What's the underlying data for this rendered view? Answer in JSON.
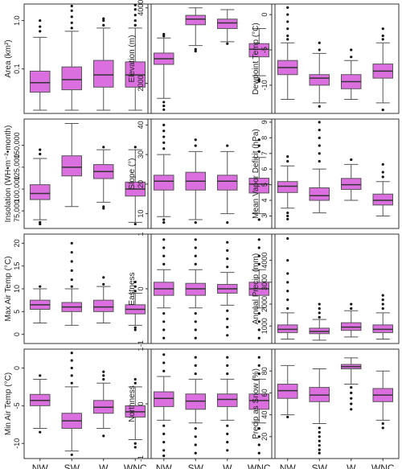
{
  "palette": {
    "box_fill": "#dc6fdf",
    "box_stroke": "#555555",
    "outlier": "#111111",
    "frame": "#333333"
  },
  "categories": [
    "NW",
    "SW",
    "W",
    "WNC"
  ],
  "chart_data": [
    {
      "type": "box",
      "ylabel": "Area (km²)",
      "yscale": "log",
      "ylim": [
        0.012,
        2.2
      ],
      "yticks": [
        {
          "v": 0.1,
          "label": "0.1"
        },
        {
          "v": 1.0,
          "label": "1.0"
        }
      ],
      "boxes": [
        {
          "min": 0.014,
          "q1": 0.033,
          "median": 0.052,
          "q3": 0.09,
          "max": 0.45,
          "outliers": [
            0.6,
            0.75,
            1.0
          ]
        },
        {
          "min": 0.014,
          "q1": 0.037,
          "median": 0.06,
          "q3": 0.11,
          "max": 0.6,
          "outliers": [
            0.7,
            0.9,
            1.2,
            1.6,
            2.0
          ]
        },
        {
          "min": 0.014,
          "q1": 0.042,
          "median": 0.075,
          "q3": 0.15,
          "max": 0.7,
          "outliers": [
            0.8,
            1.0,
            1.1
          ]
        },
        {
          "min": 0.014,
          "q1": 0.042,
          "median": 0.075,
          "q3": 0.14,
          "max": 0.7,
          "outliers": [
            0.8,
            1.0,
            1.3,
            1.7,
            2.1
          ]
        }
      ]
    },
    {
      "type": "box",
      "ylabel": "Elevation (m)",
      "yscale": "linear",
      "ylim": [
        1200,
        4100
      ],
      "yticks": [
        {
          "v": 2000,
          "label": "2000"
        },
        {
          "v": 4000,
          "label": "4000"
        }
      ],
      "boxes": [
        {
          "min": 1600,
          "q1": 2500,
          "median": 2650,
          "q3": 2800,
          "max": 3200,
          "outliers": [
            1500,
            1400,
            1300,
            3250,
            3300
          ]
        },
        {
          "min": 3000,
          "q1": 3550,
          "median": 3700,
          "q3": 3800,
          "max": 4000,
          "outliers": [
            2900,
            2850
          ]
        },
        {
          "min": 3100,
          "q1": 3450,
          "median": 3600,
          "q3": 3700,
          "max": 3950,
          "outliers": [
            3050
          ]
        },
        {
          "min": 2200,
          "q1": 2700,
          "median": 2900,
          "q3": 3050,
          "max": 3450,
          "outliers": [
            2100,
            2050
          ]
        }
      ]
    },
    {
      "type": "box",
      "ylabel": "Dewpoint Temp (°C)",
      "yscale": "linear",
      "ylim": [
        -14,
        1.5
      ],
      "yticks": [
        {
          "v": -10,
          "label": "-10"
        },
        {
          "v": -5,
          "label": "-5"
        },
        {
          "v": 0,
          "label": "0"
        }
      ],
      "boxes": [
        {
          "min": -12,
          "q1": -8.5,
          "median": -7.5,
          "q3": -6.5,
          "max": -4,
          "outliers": [
            -3.5,
            -3,
            -2,
            -1,
            0,
            1
          ]
        },
        {
          "min": -12.5,
          "q1": -10,
          "median": -9,
          "q3": -8.5,
          "max": -5.5,
          "outliers": [
            -13,
            -5,
            -4
          ]
        },
        {
          "min": -12,
          "q1": -10.5,
          "median": -9.5,
          "q3": -8.5,
          "max": -6.5,
          "outliers": [
            -6,
            -5
          ]
        },
        {
          "min": -12.5,
          "q1": -9,
          "median": -8,
          "q3": -7,
          "max": -4,
          "outliers": [
            -13.5,
            -3.5,
            -3,
            -2
          ]
        }
      ]
    },
    {
      "type": "box",
      "ylabel": "Insolation (WH•m⁻²•month)",
      "yscale": "linear",
      "ylim": [
        55000,
        180000
      ],
      "yticks": [
        {
          "v": 75000,
          "label": "75,000"
        },
        {
          "v": 100000,
          "label": "100,000"
        },
        {
          "v": 125000,
          "label": "125,000"
        },
        {
          "v": 150000,
          "label": "150,000"
        }
      ],
      "boxes": [
        {
          "min": 65000,
          "q1": 88000,
          "median": 95000,
          "q3": 105000,
          "max": 135000,
          "outliers": [
            62000,
            60000,
            140000,
            145000
          ]
        },
        {
          "min": 80000,
          "q1": 115000,
          "median": 125000,
          "q3": 138000,
          "max": 175000,
          "outliers": []
        },
        {
          "min": 85000,
          "q1": 112000,
          "median": 120000,
          "q3": 128000,
          "max": 145000,
          "outliers": [
            80000,
            78000,
            148000
          ]
        },
        {
          "min": 62000,
          "q1": 92000,
          "median": 100000,
          "q3": 108000,
          "max": 145000,
          "outliers": [
            60000,
            148000
          ]
        }
      ]
    },
    {
      "type": "box",
      "ylabel": "Slope (°)",
      "yscale": "linear",
      "ylim": [
        5,
        42
      ],
      "yticks": [
        {
          "v": 10,
          "label": "10"
        },
        {
          "v": 20,
          "label": "20"
        },
        {
          "v": 30,
          "label": "30"
        },
        {
          "v": 40,
          "label": "40"
        }
      ],
      "boxes": [
        {
          "min": 9,
          "q1": 18,
          "median": 21,
          "q3": 23,
          "max": 30,
          "outliers": [
            8,
            7,
            32,
            34,
            36,
            38,
            40
          ]
        },
        {
          "min": 8,
          "q1": 18,
          "median": 21,
          "q3": 24,
          "max": 31,
          "outliers": [
            7,
            33,
            35
          ]
        },
        {
          "min": 10,
          "q1": 18,
          "median": 21,
          "q3": 23,
          "max": 31,
          "outliers": [
            7,
            33
          ]
        },
        {
          "min": 10,
          "q1": 17,
          "median": 20,
          "q3": 22,
          "max": 29,
          "outliers": [
            8,
            31,
            33,
            35
          ]
        }
      ]
    },
    {
      "type": "box",
      "ylabel": "Mean Vapor Deficit (hPa)",
      "yscale": "linear",
      "ylim": [
        2.2,
        9.2
      ],
      "yticks": [
        {
          "v": 3,
          "label": "3"
        },
        {
          "v": 4,
          "label": "4"
        },
        {
          "v": 5,
          "label": "5"
        },
        {
          "v": 6,
          "label": "6"
        },
        {
          "v": 7,
          "label": "7"
        },
        {
          "v": 8,
          "label": "8"
        },
        {
          "v": 9,
          "label": "9"
        }
      ],
      "boxes": [
        {
          "min": 3.5,
          "q1": 4.5,
          "median": 4.9,
          "q3": 5.2,
          "max": 6.2,
          "outliers": [
            3.2,
            3.0,
            2.8,
            6.5,
            6.8
          ]
        },
        {
          "min": 3.2,
          "q1": 4.0,
          "median": 4.3,
          "q3": 4.8,
          "max": 6,
          "outliers": [
            6.5,
            7,
            7.5,
            8,
            8.5,
            9
          ]
        },
        {
          "min": 4.0,
          "q1": 4.7,
          "median": 5.0,
          "q3": 5.4,
          "max": 6.3,
          "outliers": [
            6.6
          ]
        },
        {
          "min": 3.0,
          "q1": 3.7,
          "median": 4.0,
          "q3": 4.4,
          "max": 5.2,
          "outliers": [
            5.5,
            5.8,
            6.3
          ]
        }
      ]
    },
    {
      "type": "box",
      "ylabel": "Max Air Temp (°C)",
      "yscale": "linear",
      "ylim": [
        -2,
        22
      ],
      "yticks": [
        {
          "v": 0,
          "label": "0"
        },
        {
          "v": 5,
          "label": "5"
        },
        {
          "v": 10,
          "label": "10"
        },
        {
          "v": 15,
          "label": "15"
        },
        {
          "v": 20,
          "label": "20"
        }
      ],
      "boxes": [
        {
          "min": 2.5,
          "q1": 5.5,
          "median": 6.5,
          "q3": 7.5,
          "max": 10,
          "outliers": [
            10.5
          ]
        },
        {
          "min": 2,
          "q1": 5,
          "median": 6,
          "q3": 7,
          "max": 10,
          "outliers": [
            10.5,
            12,
            14,
            16,
            18,
            20
          ]
        },
        {
          "min": 2.5,
          "q1": 5,
          "median": 6,
          "q3": 7.5,
          "max": 10.5,
          "outliers": [
            11,
            12.5
          ]
        },
        {
          "min": 2,
          "q1": 4.5,
          "median": 5.5,
          "q3": 6.5,
          "max": 9,
          "outliers": [
            1.5,
            1,
            9.5,
            10.5,
            11.5
          ]
        }
      ]
    },
    {
      "type": "box",
      "ylabel": "Eastness",
      "yscale": "linear",
      "ylim": [
        -1,
        1
      ],
      "yticks": [
        {
          "v": -1,
          "label": "-1"
        },
        {
          "v": 0,
          "label": "0"
        },
        {
          "v": 1,
          "label": "1"
        }
      ],
      "boxes": [
        {
          "min": -0.35,
          "q1": -0.12,
          "median": 0.0,
          "q3": 0.12,
          "max": 0.35,
          "outliers": [
            -0.45,
            -0.6,
            -0.75,
            -0.9,
            0.45,
            0.6,
            0.75,
            0.9
          ]
        },
        {
          "min": -0.35,
          "q1": -0.12,
          "median": 0.0,
          "q3": 0.1,
          "max": 0.35,
          "outliers": [
            -0.45,
            -0.6,
            -0.75,
            -0.9,
            0.45,
            0.6,
            0.75,
            0.9
          ]
        },
        {
          "min": -0.3,
          "q1": -0.08,
          "median": 0.0,
          "q3": 0.08,
          "max": 0.3,
          "outliers": [
            -0.4,
            -0.55,
            -0.7,
            -0.85,
            0.4,
            0.55,
            0.7,
            0.85
          ]
        },
        {
          "min": -0.35,
          "q1": -0.12,
          "median": 0.0,
          "q3": 0.12,
          "max": 0.35,
          "outliers": [
            -0.45,
            -0.6,
            -0.75,
            -0.9,
            0.45,
            0.6,
            0.75,
            0.9
          ]
        }
      ]
    },
    {
      "type": "box",
      "ylabel": "Annual Precip (mm)",
      "yscale": "linear",
      "ylim": [
        200,
        5200
      ],
      "yticks": [
        {
          "v": 1000,
          "label": "1000"
        },
        {
          "v": 2000,
          "label": "2000"
        },
        {
          "v": 3000,
          "label": "3000"
        },
        {
          "v": 4000,
          "label": "4000"
        }
      ],
      "boxes": [
        {
          "min": 400,
          "q1": 700,
          "median": 850,
          "q3": 1050,
          "max": 1600,
          "outliers": [
            1800,
            2200,
            2600,
            3000,
            3400,
            4000,
            5000
          ]
        },
        {
          "min": 350,
          "q1": 650,
          "median": 750,
          "q3": 900,
          "max": 1300,
          "outliers": [
            1400,
            1600,
            1800,
            2000
          ]
        },
        {
          "min": 500,
          "q1": 800,
          "median": 950,
          "q3": 1150,
          "max": 1700,
          "outliers": [
            1800,
            2000
          ]
        },
        {
          "min": 400,
          "q1": 700,
          "median": 850,
          "q3": 1050,
          "max": 1600,
          "outliers": [
            1800,
            2000,
            2200,
            2400
          ]
        }
      ]
    },
    {
      "type": "box",
      "ylabel": "Min Air Temp (°C)",
      "yscale": "linear",
      "ylim": [
        -12,
        2.5
      ],
      "yticks": [
        {
          "v": -10,
          "label": "-10"
        },
        {
          "v": -5,
          "label": "-5"
        },
        {
          "v": 0,
          "label": "0"
        }
      ],
      "boxes": [
        {
          "min": -8,
          "q1": -5,
          "median": -4.3,
          "q3": -3.5,
          "max": -1.5,
          "outliers": [
            -8.5,
            -1
          ]
        },
        {
          "min": -11,
          "q1": -8,
          "median": -7,
          "q3": -6,
          "max": -2.5,
          "outliers": [
            -11.5,
            -2,
            -1,
            0,
            1,
            2
          ]
        },
        {
          "min": -8,
          "q1": -6,
          "median": -5.2,
          "q3": -4.3,
          "max": -2,
          "outliers": [
            -9,
            -1.5,
            -1,
            -0.5
          ]
        },
        {
          "min": -9.5,
          "q1": -6.5,
          "median": -5.8,
          "q3": -5,
          "max": -2.5,
          "outliers": [
            -10,
            -10.5,
            -2,
            -1.5
          ]
        }
      ]
    },
    {
      "type": "box",
      "ylabel": "Northness",
      "yscale": "linear",
      "ylim": [
        -1,
        1
      ],
      "yticks": [
        {
          "v": -1,
          "label": "-1"
        },
        {
          "v": 0,
          "label": "0"
        },
        {
          "v": 1,
          "label": "1"
        }
      ],
      "boxes": [
        {
          "min": -0.3,
          "q1": -0.05,
          "median": 0.1,
          "q3": 0.22,
          "max": 0.5,
          "outliers": [
            -0.4,
            -0.55,
            -0.7,
            -0.85,
            -0.95,
            0.6,
            0.75,
            0.9
          ]
        },
        {
          "min": -0.35,
          "q1": -0.1,
          "median": 0.05,
          "q3": 0.18,
          "max": 0.45,
          "outliers": [
            -0.45,
            -0.6,
            -0.75,
            -0.9,
            0.55,
            0.7,
            0.85
          ]
        },
        {
          "min": -0.3,
          "q1": -0.05,
          "median": 0.08,
          "q3": 0.18,
          "max": 0.45,
          "outliers": [
            -0.4,
            -0.55,
            -0.7,
            -0.85,
            0.55,
            0.7,
            0.85
          ]
        },
        {
          "min": -0.35,
          "q1": -0.1,
          "median": 0.06,
          "q3": 0.18,
          "max": 0.45,
          "outliers": [
            -0.45,
            -0.6,
            -0.75,
            -0.9,
            0.55,
            0.7,
            0.85
          ]
        }
      ]
    },
    {
      "type": "box",
      "ylabel": "Precip as Snow (%)",
      "yscale": "linear",
      "ylim": [
        0,
        100
      ],
      "yticks": [
        {
          "v": 20,
          "label": "20"
        },
        {
          "v": 40,
          "label": "40"
        },
        {
          "v": 60,
          "label": "60"
        },
        {
          "v": 80,
          "label": "80"
        }
      ],
      "boxes": [
        {
          "min": 40,
          "q1": 55,
          "median": 62,
          "q3": 68,
          "max": 85,
          "outliers": [
            38
          ]
        },
        {
          "min": 32,
          "q1": 52,
          "median": 58,
          "q3": 65,
          "max": 82,
          "outliers": [
            28,
            24,
            20,
            16,
            12,
            8,
            5
          ]
        },
        {
          "min": 68,
          "q1": 82,
          "median": 84,
          "q3": 86,
          "max": 92,
          "outliers": [
            65,
            60,
            55,
            50,
            45
          ]
        },
        {
          "min": 35,
          "q1": 52,
          "median": 58,
          "q3": 64,
          "max": 80,
          "outliers": [
            32,
            28
          ]
        }
      ]
    }
  ]
}
